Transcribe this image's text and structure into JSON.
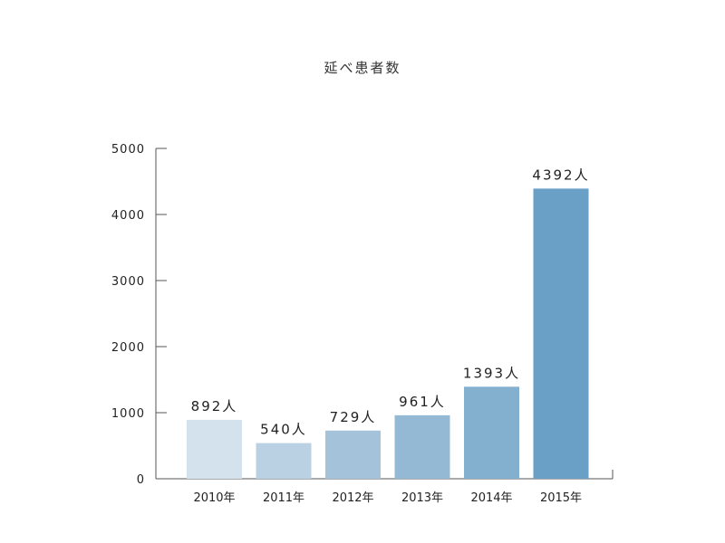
{
  "chart_data": {
    "type": "bar",
    "title": "延べ患者数",
    "categories": [
      "2010年",
      "2011年",
      "2012年",
      "2013年",
      "2014年",
      "2015年"
    ],
    "values": [
      892,
      540,
      729,
      961,
      1393,
      4392
    ],
    "data_labels": [
      "892人",
      "540人",
      "729人",
      "961人",
      "1393人",
      "4392人"
    ],
    "y_ticks": [
      "0",
      "1000",
      "2000",
      "3000",
      "4000",
      "5000"
    ],
    "ylim": [
      0,
      5000
    ],
    "grid": false,
    "legend": "none",
    "bar_colors": [
      "#d3e2ec",
      "#b9d1e3",
      "#a4c3da",
      "#94b9d5",
      "#84b0d0",
      "#6a9fc6"
    ]
  }
}
